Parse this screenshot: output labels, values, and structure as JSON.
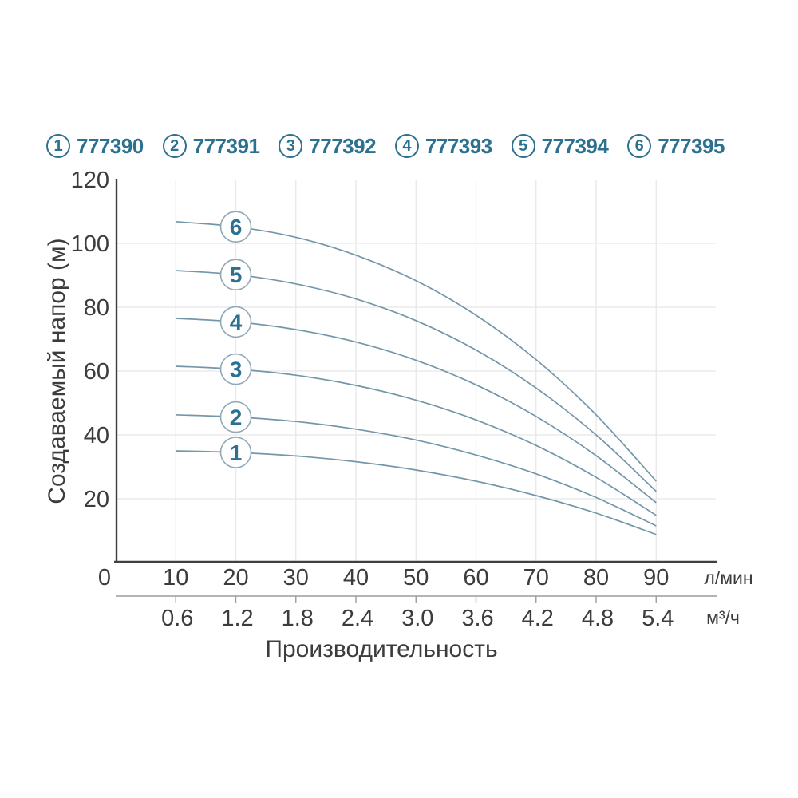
{
  "colors": {
    "accent_teal": "#2d7190",
    "curve_stroke": "#7496a9",
    "curve_badge_border": "#8fa9b8",
    "grid": "#e8e8e8",
    "axis_line": "#404040",
    "secondary_axis_line": "#9c9c9c",
    "axis_text": "#3c3c3c",
    "background": "#ffffff"
  },
  "legend": {
    "items": [
      {
        "num": "1",
        "code": "777390"
      },
      {
        "num": "2",
        "code": "777391"
      },
      {
        "num": "3",
        "code": "777392"
      },
      {
        "num": "4",
        "code": "777393"
      },
      {
        "num": "5",
        "code": "777394"
      },
      {
        "num": "6",
        "code": "777395"
      }
    ]
  },
  "chart_data": {
    "type": "line",
    "x": [
      10,
      20,
      30,
      40,
      50,
      60,
      70,
      80,
      90
    ],
    "series": [
      {
        "name": "1",
        "code": "777390",
        "values": [
          35.0,
          34.5,
          33.4,
          31.6,
          29.0,
          25.5,
          21.0,
          15.5,
          8.8
        ]
      },
      {
        "name": "2",
        "code": "777391",
        "values": [
          46.3,
          45.6,
          44.2,
          41.8,
          38.4,
          33.7,
          27.8,
          20.4,
          11.5
        ]
      },
      {
        "name": "3",
        "code": "777392",
        "values": [
          61.5,
          60.6,
          58.7,
          55.5,
          50.9,
          44.7,
          36.7,
          26.7,
          14.8
        ]
      },
      {
        "name": "4",
        "code": "777393",
        "values": [
          76.5,
          75.4,
          73.0,
          69.1,
          63.4,
          55.7,
          45.8,
          33.5,
          18.8
        ]
      },
      {
        "name": "5",
        "code": "777394",
        "values": [
          91.5,
          90.2,
          87.3,
          82.6,
          75.8,
          66.6,
          54.7,
          40.0,
          22.3
        ]
      },
      {
        "name": "6",
        "code": "777395",
        "values": [
          106.8,
          105.2,
          101.9,
          96.3,
          88.3,
          77.5,
          63.6,
          46.3,
          25.5
        ]
      }
    ],
    "title": "",
    "xlabel": "Производительность",
    "ylabel": "Создаваемый напор (м)",
    "x_axis": {
      "tick_values": [
        0,
        10,
        20,
        30,
        40,
        50,
        60,
        70,
        80,
        90
      ],
      "tick_labels": [
        "0",
        "10",
        "20",
        "30",
        "40",
        "50",
        "60",
        "70",
        "80",
        "90"
      ],
      "unit": "л/мин",
      "range": [
        0,
        90
      ]
    },
    "x_axis_secondary": {
      "tick_values": [
        10,
        20,
        30,
        40,
        50,
        60,
        70,
        80,
        90
      ],
      "tick_labels": [
        "0.6",
        "1.2",
        "1.8",
        "2.4",
        "3.0",
        "3.6",
        "4.2",
        "4.8",
        "5.4"
      ],
      "unit": "м³/ч"
    },
    "y_axis": {
      "tick_values": [
        120,
        100,
        80,
        60,
        40,
        20
      ],
      "tick_labels": [
        "120",
        "100",
        "80",
        "60",
        "40",
        "20"
      ],
      "range": [
        0,
        120
      ]
    },
    "grid": {
      "h_values": [
        20,
        40,
        60,
        80,
        100
      ],
      "v_values": [
        10,
        20,
        30,
        40,
        50,
        60,
        70,
        80,
        90
      ]
    },
    "curve_label_at_x": 20,
    "legend_position": "top"
  }
}
